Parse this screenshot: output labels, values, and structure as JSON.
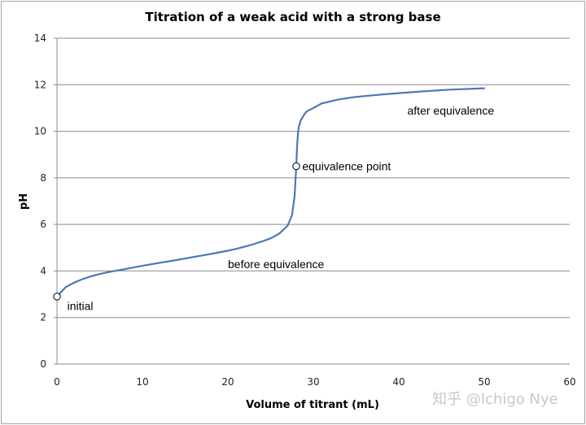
{
  "chart_data": {
    "type": "line",
    "title": "Titration of a weak acid with a strong base",
    "xlabel": "Volume of titrant (mL)",
    "ylabel": "pH",
    "xlim": [
      0,
      60
    ],
    "ylim": [
      0,
      14
    ],
    "xticks": [
      0,
      10,
      20,
      30,
      40,
      50,
      60
    ],
    "yticks": [
      0,
      2,
      4,
      6,
      8,
      10,
      12,
      14
    ],
    "grid": "horizontal",
    "legend": "none",
    "series": [
      {
        "name": "pH",
        "color": "#4a7ab0",
        "x": [
          0,
          0.5,
          1,
          2,
          3,
          4,
          5,
          6,
          7,
          8,
          10,
          12,
          14,
          16,
          18,
          20,
          21,
          22,
          23,
          24,
          25,
          26,
          27,
          27.5,
          27.8,
          28.0,
          28.1,
          28.2,
          28.3,
          28.5,
          28.8,
          29.2,
          30,
          31,
          33,
          35,
          38,
          40,
          43,
          46,
          50
        ],
        "y": [
          2.9,
          3.1,
          3.3,
          3.5,
          3.65,
          3.77,
          3.87,
          3.95,
          4.02,
          4.08,
          4.22,
          4.35,
          4.47,
          4.6,
          4.73,
          4.87,
          4.95,
          5.05,
          5.15,
          5.27,
          5.4,
          5.6,
          5.95,
          6.4,
          7.2,
          8.5,
          9.4,
          9.9,
          10.2,
          10.45,
          10.65,
          10.85,
          11.0,
          11.2,
          11.37,
          11.48,
          11.58,
          11.64,
          11.72,
          11.79,
          11.85
        ]
      }
    ],
    "markers": [
      {
        "label": "initial",
        "x": 0,
        "y": 2.9
      },
      {
        "label": "equivalence point",
        "x": 28.0,
        "y": 8.5
      }
    ],
    "annotations": [
      {
        "text": "initial",
        "x": 1.2,
        "y": 2.5
      },
      {
        "text": "equivalence point",
        "x": 28.7,
        "y": 8.5
      },
      {
        "text": "before equivalence",
        "x": 20,
        "y": 4.3
      },
      {
        "text": "after equivalence",
        "x": 41,
        "y": 10.9
      }
    ]
  },
  "watermark": "知乎 @Ichigo Nye"
}
